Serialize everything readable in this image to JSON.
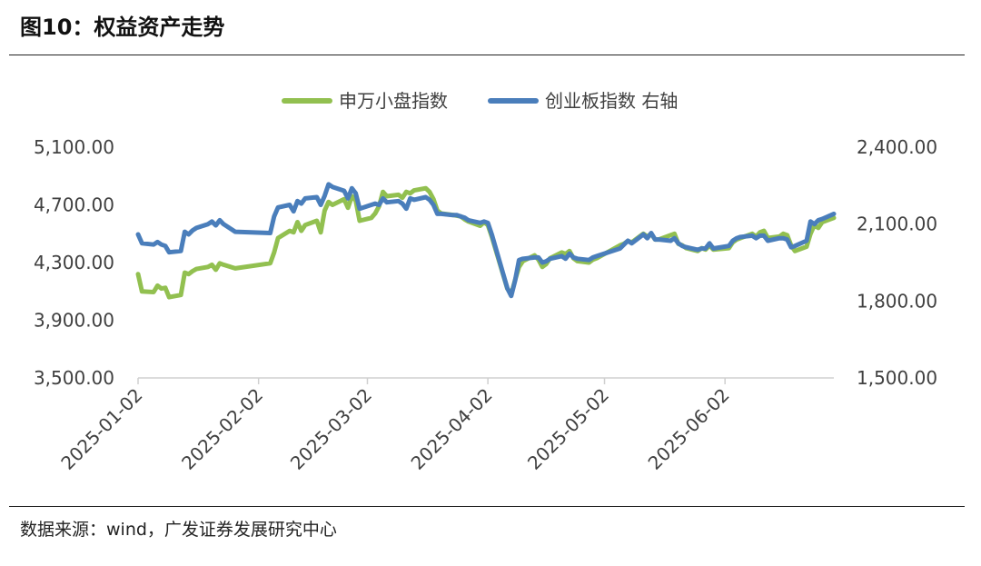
{
  "header": {
    "title": "图10：权益资产走势"
  },
  "footer": {
    "source": "数据来源：wind，广发证券发展研究中心"
  },
  "chart_data": {
    "type": "line",
    "title": "",
    "xlabel": "",
    "ylabel_left": "",
    "ylabel_right": "",
    "x_ticks": [
      "2025-01-02",
      "2025-02-02",
      "2025-03-02",
      "2025-04-02",
      "2025-05-02",
      "2025-06-02"
    ],
    "y_left_range": [
      3500,
      5100
    ],
    "y_left_ticks": [
      "3,500.00",
      "3,900.00",
      "4,300.00",
      "4,700.00",
      "5,100.00"
    ],
    "y_right_range": [
      1500,
      2400
    ],
    "y_right_ticks": [
      "1,500.00",
      "1,800.00",
      "2,100.00",
      "2,400.00"
    ],
    "legend": {
      "position": "top-center"
    },
    "grid": false,
    "series": [
      {
        "name": "申万小盘指数",
        "axis": "left",
        "color": "#92c050",
        "points": [
          [
            "2025-01-02",
            4220
          ],
          [
            "2025-01-03",
            4100
          ],
          [
            "2025-01-06",
            4095
          ],
          [
            "2025-01-07",
            4140
          ],
          [
            "2025-01-08",
            4120
          ],
          [
            "2025-01-09",
            4125
          ],
          [
            "2025-01-10",
            4060
          ],
          [
            "2025-01-13",
            4075
          ],
          [
            "2025-01-14",
            4230
          ],
          [
            "2025-01-15",
            4220
          ],
          [
            "2025-01-16",
            4240
          ],
          [
            "2025-01-17",
            4255
          ],
          [
            "2025-01-20",
            4270
          ],
          [
            "2025-01-21",
            4285
          ],
          [
            "2025-01-22",
            4250
          ],
          [
            "2025-01-23",
            4295
          ],
          [
            "2025-01-24",
            4285
          ],
          [
            "2025-01-27",
            4260
          ],
          [
            "2025-02-05",
            4295
          ],
          [
            "2025-02-06",
            4370
          ],
          [
            "2025-02-07",
            4470
          ],
          [
            "2025-02-10",
            4520
          ],
          [
            "2025-02-11",
            4510
          ],
          [
            "2025-02-12",
            4580
          ],
          [
            "2025-02-13",
            4520
          ],
          [
            "2025-02-14",
            4560
          ],
          [
            "2025-02-17",
            4590
          ],
          [
            "2025-02-18",
            4510
          ],
          [
            "2025-02-19",
            4660
          ],
          [
            "2025-02-20",
            4720
          ],
          [
            "2025-02-21",
            4700
          ],
          [
            "2025-02-24",
            4740
          ],
          [
            "2025-02-25",
            4680
          ],
          [
            "2025-02-26",
            4760
          ],
          [
            "2025-02-27",
            4730
          ],
          [
            "2025-02-28",
            4590
          ],
          [
            "2025-03-03",
            4610
          ],
          [
            "2025-03-04",
            4640
          ],
          [
            "2025-03-05",
            4690
          ],
          [
            "2025-03-06",
            4790
          ],
          [
            "2025-03-07",
            4760
          ],
          [
            "2025-03-10",
            4770
          ],
          [
            "2025-03-11",
            4750
          ],
          [
            "2025-03-12",
            4790
          ],
          [
            "2025-03-13",
            4780
          ],
          [
            "2025-03-14",
            4800
          ],
          [
            "2025-03-17",
            4815
          ],
          [
            "2025-03-18",
            4790
          ],
          [
            "2025-03-19",
            4740
          ],
          [
            "2025-03-20",
            4660
          ],
          [
            "2025-03-21",
            4640
          ],
          [
            "2025-03-24",
            4630
          ],
          [
            "2025-03-25",
            4625
          ],
          [
            "2025-03-26",
            4620
          ],
          [
            "2025-03-27",
            4600
          ],
          [
            "2025-03-28",
            4585
          ],
          [
            "2025-03-31",
            4555
          ],
          [
            "2025-04-01",
            4580
          ],
          [
            "2025-04-02",
            4560
          ],
          [
            "2025-04-03",
            4480
          ],
          [
            "2025-04-07",
            4120
          ],
          [
            "2025-04-08",
            4080
          ],
          [
            "2025-04-09",
            4180
          ],
          [
            "2025-04-10",
            4270
          ],
          [
            "2025-04-11",
            4310
          ],
          [
            "2025-04-14",
            4350
          ],
          [
            "2025-04-15",
            4320
          ],
          [
            "2025-04-16",
            4270
          ],
          [
            "2025-04-17",
            4290
          ],
          [
            "2025-04-18",
            4330
          ],
          [
            "2025-04-21",
            4370
          ],
          [
            "2025-04-22",
            4360
          ],
          [
            "2025-04-23",
            4380
          ],
          [
            "2025-04-24",
            4330
          ],
          [
            "2025-04-25",
            4310
          ],
          [
            "2025-04-28",
            4300
          ],
          [
            "2025-04-29",
            4320
          ],
          [
            "2025-04-30",
            4330
          ],
          [
            "2025-05-06",
            4420
          ],
          [
            "2025-05-07",
            4430
          ],
          [
            "2025-05-08",
            4450
          ],
          [
            "2025-05-09",
            4440
          ],
          [
            "2025-05-12",
            4500
          ],
          [
            "2025-05-13",
            4480
          ],
          [
            "2025-05-14",
            4500
          ],
          [
            "2025-05-15",
            4460
          ],
          [
            "2025-05-16",
            4460
          ],
          [
            "2025-05-19",
            4490
          ],
          [
            "2025-05-20",
            4500
          ],
          [
            "2025-05-21",
            4430
          ],
          [
            "2025-05-22",
            4420
          ],
          [
            "2025-05-23",
            4400
          ],
          [
            "2025-05-26",
            4380
          ],
          [
            "2025-05-27",
            4400
          ],
          [
            "2025-05-28",
            4390
          ],
          [
            "2025-05-29",
            4420
          ],
          [
            "2025-05-30",
            4390
          ],
          [
            "2025-06-03",
            4400
          ],
          [
            "2025-06-04",
            4440
          ],
          [
            "2025-06-05",
            4460
          ],
          [
            "2025-06-06",
            4470
          ],
          [
            "2025-06-09",
            4500
          ],
          [
            "2025-06-10",
            4480
          ],
          [
            "2025-06-11",
            4510
          ],
          [
            "2025-06-12",
            4520
          ],
          [
            "2025-06-13",
            4470
          ],
          [
            "2025-06-16",
            4480
          ],
          [
            "2025-06-17",
            4500
          ],
          [
            "2025-06-18",
            4490
          ],
          [
            "2025-06-19",
            4420
          ],
          [
            "2025-06-20",
            4380
          ],
          [
            "2025-06-23",
            4410
          ],
          [
            "2025-06-24",
            4500
          ],
          [
            "2025-06-25",
            4560
          ],
          [
            "2025-06-26",
            4540
          ],
          [
            "2025-06-27",
            4580
          ],
          [
            "2025-06-30",
            4610
          ]
        ]
      },
      {
        "name": "创业板指数 右轴",
        "axis": "right",
        "color": "#4a7ebb",
        "points": [
          [
            "2025-01-02",
            2060
          ],
          [
            "2025-01-03",
            2025
          ],
          [
            "2025-01-06",
            2020
          ],
          [
            "2025-01-07",
            2030
          ],
          [
            "2025-01-08",
            2020
          ],
          [
            "2025-01-09",
            2015
          ],
          [
            "2025-01-10",
            1990
          ],
          [
            "2025-01-13",
            1995
          ],
          [
            "2025-01-14",
            2070
          ],
          [
            "2025-01-15",
            2060
          ],
          [
            "2025-01-16",
            2075
          ],
          [
            "2025-01-17",
            2085
          ],
          [
            "2025-01-20",
            2100
          ],
          [
            "2025-01-21",
            2110
          ],
          [
            "2025-01-22",
            2095
          ],
          [
            "2025-01-23",
            2115
          ],
          [
            "2025-01-24",
            2100
          ],
          [
            "2025-01-27",
            2070
          ],
          [
            "2025-02-05",
            2065
          ],
          [
            "2025-02-06",
            2130
          ],
          [
            "2025-02-07",
            2165
          ],
          [
            "2025-02-10",
            2175
          ],
          [
            "2025-02-11",
            2150
          ],
          [
            "2025-02-12",
            2190
          ],
          [
            "2025-02-13",
            2180
          ],
          [
            "2025-02-14",
            2200
          ],
          [
            "2025-02-17",
            2205
          ],
          [
            "2025-02-18",
            2175
          ],
          [
            "2025-02-19",
            2210
          ],
          [
            "2025-02-20",
            2255
          ],
          [
            "2025-02-21",
            2245
          ],
          [
            "2025-02-24",
            2230
          ],
          [
            "2025-02-25",
            2200
          ],
          [
            "2025-02-26",
            2240
          ],
          [
            "2025-02-27",
            2220
          ],
          [
            "2025-02-28",
            2160
          ],
          [
            "2025-03-03",
            2175
          ],
          [
            "2025-03-04",
            2180
          ],
          [
            "2025-03-05",
            2175
          ],
          [
            "2025-03-06",
            2200
          ],
          [
            "2025-03-07",
            2185
          ],
          [
            "2025-03-10",
            2190
          ],
          [
            "2025-03-11",
            2180
          ],
          [
            "2025-03-12",
            2160
          ],
          [
            "2025-03-13",
            2200
          ],
          [
            "2025-03-14",
            2195
          ],
          [
            "2025-03-17",
            2205
          ],
          [
            "2025-03-18",
            2195
          ],
          [
            "2025-03-19",
            2175
          ],
          [
            "2025-03-20",
            2140
          ],
          [
            "2025-03-21",
            2140
          ],
          [
            "2025-03-24",
            2135
          ],
          [
            "2025-03-25",
            2135
          ],
          [
            "2025-03-26",
            2130
          ],
          [
            "2025-03-27",
            2125
          ],
          [
            "2025-03-28",
            2115
          ],
          [
            "2025-03-31",
            2105
          ],
          [
            "2025-04-01",
            2110
          ],
          [
            "2025-04-02",
            2105
          ],
          [
            "2025-04-03",
            2060
          ],
          [
            "2025-04-07",
            1850
          ],
          [
            "2025-04-08",
            1820
          ],
          [
            "2025-04-09",
            1880
          ],
          [
            "2025-04-10",
            1960
          ],
          [
            "2025-04-11",
            1965
          ],
          [
            "2025-04-14",
            1970
          ],
          [
            "2025-04-15",
            1970
          ],
          [
            "2025-04-16",
            1950
          ],
          [
            "2025-04-17",
            1955
          ],
          [
            "2025-04-18",
            1965
          ],
          [
            "2025-04-21",
            1975
          ],
          [
            "2025-04-22",
            1965
          ],
          [
            "2025-04-23",
            1985
          ],
          [
            "2025-04-24",
            1970
          ],
          [
            "2025-04-25",
            1965
          ],
          [
            "2025-04-28",
            1960
          ],
          [
            "2025-04-29",
            1970
          ],
          [
            "2025-04-30",
            1975
          ],
          [
            "2025-05-06",
            2005
          ],
          [
            "2025-05-07",
            2020
          ],
          [
            "2025-05-08",
            2035
          ],
          [
            "2025-05-09",
            2025
          ],
          [
            "2025-05-12",
            2060
          ],
          [
            "2025-05-13",
            2045
          ],
          [
            "2025-05-14",
            2065
          ],
          [
            "2025-05-15",
            2040
          ],
          [
            "2025-05-16",
            2040
          ],
          [
            "2025-05-19",
            2035
          ],
          [
            "2025-05-20",
            2045
          ],
          [
            "2025-05-21",
            2025
          ],
          [
            "2025-05-22",
            2015
          ],
          [
            "2025-05-23",
            2010
          ],
          [
            "2025-05-26",
            2000
          ],
          [
            "2025-05-27",
            2005
          ],
          [
            "2025-05-28",
            2005
          ],
          [
            "2025-05-29",
            2025
          ],
          [
            "2025-05-30",
            2005
          ],
          [
            "2025-06-03",
            2015
          ],
          [
            "2025-06-04",
            2035
          ],
          [
            "2025-06-05",
            2045
          ],
          [
            "2025-06-06",
            2050
          ],
          [
            "2025-06-09",
            2055
          ],
          [
            "2025-06-10",
            2045
          ],
          [
            "2025-06-11",
            2055
          ],
          [
            "2025-06-12",
            2055
          ],
          [
            "2025-06-13",
            2035
          ],
          [
            "2025-06-16",
            2045
          ],
          [
            "2025-06-17",
            2045
          ],
          [
            "2025-06-18",
            2040
          ],
          [
            "2025-06-19",
            2010
          ],
          [
            "2025-06-20",
            2015
          ],
          [
            "2025-06-23",
            2035
          ],
          [
            "2025-06-24",
            2110
          ],
          [
            "2025-06-25",
            2100
          ],
          [
            "2025-06-26",
            2115
          ],
          [
            "2025-06-27",
            2120
          ],
          [
            "2025-06-30",
            2140
          ]
        ]
      }
    ]
  }
}
